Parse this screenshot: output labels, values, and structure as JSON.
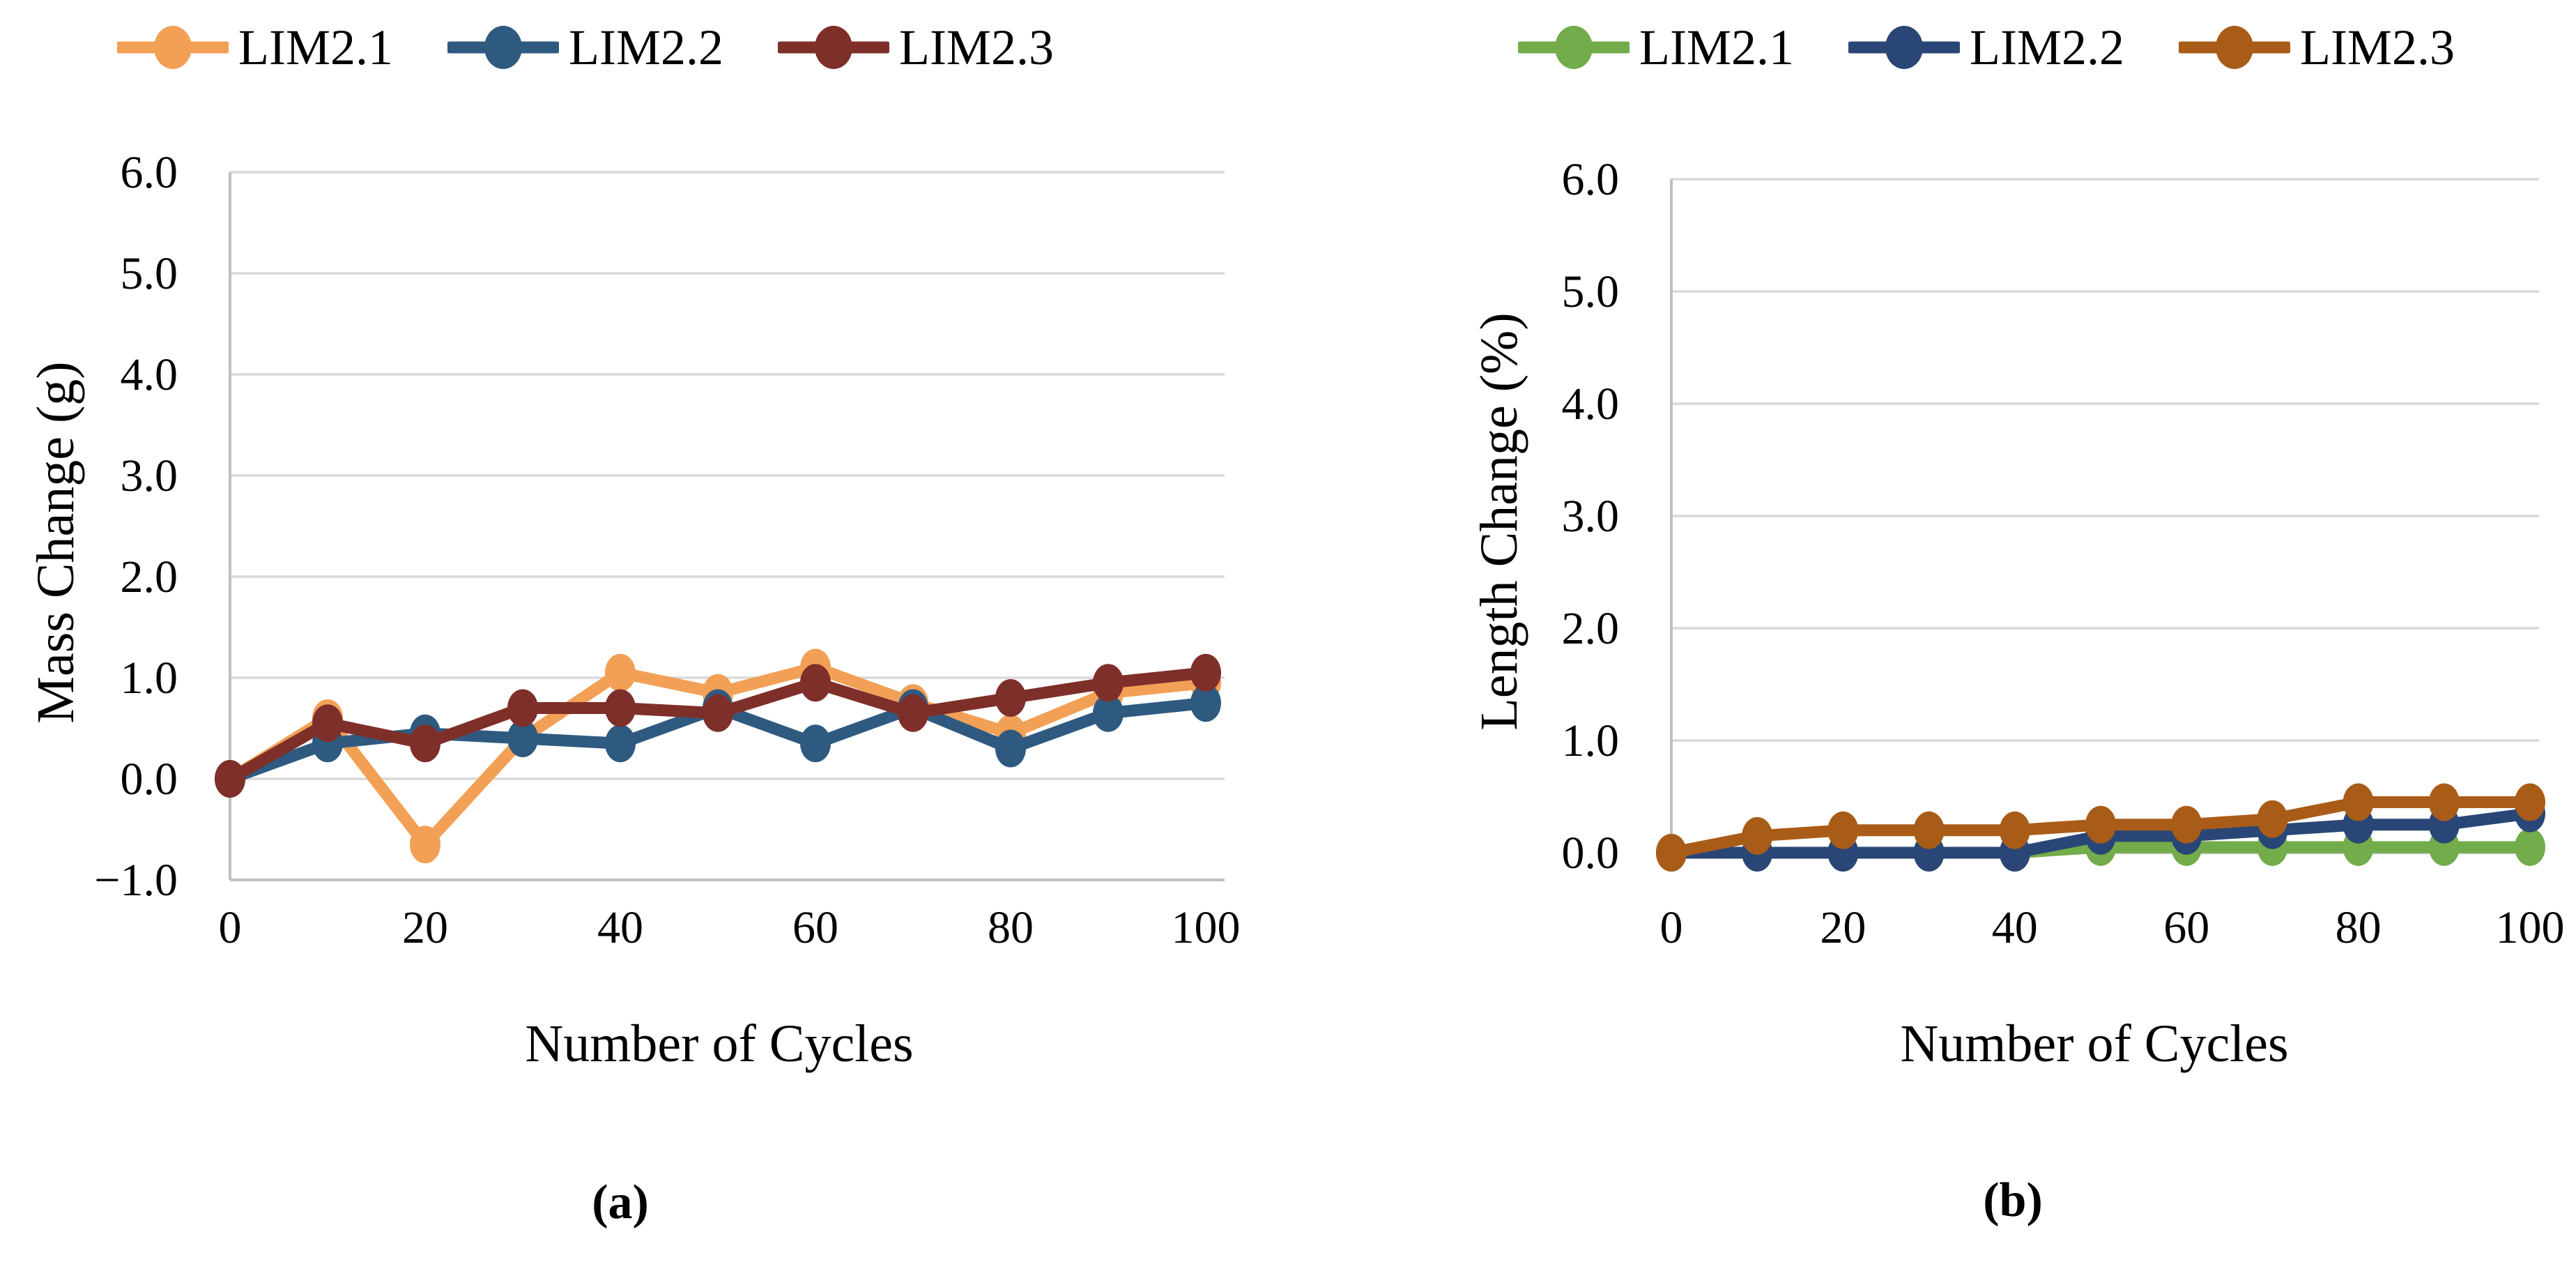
{
  "figure": {
    "caption_a": "(a)",
    "caption_b": "(b)",
    "background_color": "#FFFFFF",
    "gridline_color": "#D9D9D9",
    "axis_line_color": "#BFBFBF"
  },
  "chart_data": [
    {
      "type": "line",
      "panel": "a",
      "title": "",
      "xlabel": "Number of Cycles",
      "ylabel": "Mass Change (g)",
      "x": [
        0,
        10,
        20,
        30,
        40,
        50,
        60,
        70,
        80,
        90,
        100
      ],
      "xtick_labels": [
        "0",
        "20",
        "40",
        "60",
        "80",
        "100"
      ],
      "xticks": [
        0,
        20,
        40,
        60,
        80,
        100
      ],
      "ytick_labels": [
        "6.0",
        "5.0",
        "4.0",
        "3.0",
        "2.0",
        "1.0",
        "0.0",
        "−1.0"
      ],
      "yticks": [
        6.0,
        5.0,
        4.0,
        3.0,
        2.0,
        1.0,
        0.0,
        -1.0
      ],
      "xlim": [
        0,
        100
      ],
      "ylim": [
        -1.0,
        6.0
      ],
      "grid": true,
      "legend_position": "top",
      "series": [
        {
          "name": "LIM2.1",
          "color": "#F2A055",
          "values": [
            0.0,
            0.6,
            -0.65,
            0.4,
            1.05,
            0.85,
            1.1,
            0.75,
            0.45,
            0.85,
            0.95
          ]
        },
        {
          "name": "LIM2.2",
          "color": "#2F5A80",
          "values": [
            0.0,
            0.35,
            0.45,
            0.4,
            0.35,
            0.7,
            0.35,
            0.7,
            0.3,
            0.65,
            0.75
          ]
        },
        {
          "name": "LIM2.3",
          "color": "#7E2F2A",
          "values": [
            0.0,
            0.55,
            0.35,
            0.7,
            0.7,
            0.65,
            0.95,
            0.65,
            0.8,
            0.95,
            1.05
          ]
        }
      ]
    },
    {
      "type": "line",
      "panel": "b",
      "title": "",
      "xlabel": "Number of Cycles",
      "ylabel": "Length Change (%)",
      "x": [
        0,
        10,
        20,
        30,
        40,
        50,
        60,
        70,
        80,
        90,
        100
      ],
      "xtick_labels": [
        "0",
        "20",
        "40",
        "60",
        "80",
        "100"
      ],
      "xticks": [
        0,
        20,
        40,
        60,
        80,
        100
      ],
      "ytick_labels": [
        "6.0",
        "5.0",
        "4.0",
        "3.0",
        "2.0",
        "1.0",
        "0.0"
      ],
      "yticks": [
        6.0,
        5.0,
        4.0,
        3.0,
        2.0,
        1.0,
        0.0
      ],
      "xlim": [
        0,
        100
      ],
      "ylim": [
        0.0,
        6.0
      ],
      "grid": true,
      "legend_position": "top",
      "series": [
        {
          "name": "LIM2.1",
          "color": "#72AC4B",
          "values": [
            0.0,
            0.0,
            0.0,
            0.0,
            0.0,
            0.05,
            0.05,
            0.05,
            0.05,
            0.05,
            0.05
          ]
        },
        {
          "name": "LIM2.2",
          "color": "#2A4677",
          "values": [
            0.0,
            0.0,
            0.0,
            0.0,
            0.0,
            0.15,
            0.15,
            0.2,
            0.25,
            0.25,
            0.35
          ]
        },
        {
          "name": "LIM2.3",
          "color": "#A95C17",
          "values": [
            0.0,
            0.15,
            0.2,
            0.2,
            0.2,
            0.25,
            0.25,
            0.3,
            0.45,
            0.45,
            0.45
          ]
        }
      ]
    }
  ]
}
